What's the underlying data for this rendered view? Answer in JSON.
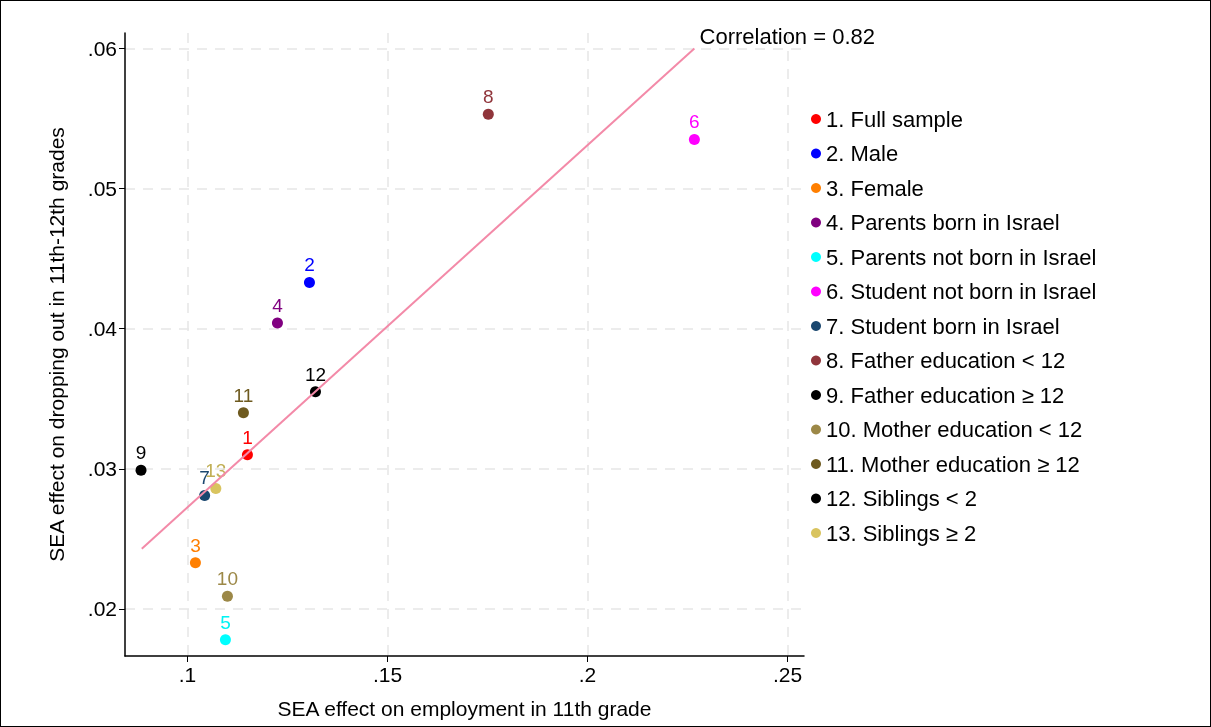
{
  "chart_data": {
    "type": "scatter",
    "xlabel": "SEA effect on employment in 11th grade",
    "ylabel": "SEA effect on dropping out in 11th-12th grades",
    "annotations": [
      "Correlation = 0.82",
      {
        "text": "1",
        "x": 0.115,
        "y": 0.031
      },
      {
        "text": "2",
        "x": 0.1305,
        "y": 0.0433
      },
      {
        "text": "3",
        "x": 0.102,
        "y": 0.0233
      },
      {
        "text": "4",
        "x": 0.1225,
        "y": 0.0404
      },
      {
        "text": "5",
        "x": 0.1095,
        "y": 0.0178
      },
      {
        "text": "6",
        "x": 0.2267,
        "y": 0.0535
      },
      {
        "text": "7",
        "x": 0.1043,
        "y": 0.0281
      },
      {
        "text": "8",
        "x": 0.1752,
        "y": 0.0553
      },
      {
        "text": "9",
        "x": 0.0884,
        "y": 0.0299
      },
      {
        "text": "10",
        "x": 0.11,
        "y": 0.0209
      },
      {
        "text": "11",
        "x": 0.114,
        "y": 0.034
      },
      {
        "text": "12",
        "x": 0.132,
        "y": 0.0355
      },
      {
        "text": "13",
        "x": 0.1071,
        "y": 0.0286
      }
    ],
    "xlim": [
      0.0844,
      0.2541
    ],
    "ylim": [
      0.01664,
      0.0611
    ],
    "xticks": [
      {
        "value": 0.1,
        "label": ".1"
      },
      {
        "value": 0.15,
        "label": ".15"
      },
      {
        "value": 0.2,
        "label": ".2"
      },
      {
        "value": 0.25,
        "label": ".25"
      }
    ],
    "yticks": [
      {
        "value": 0.02,
        "label": ".02"
      },
      {
        "value": 0.03,
        "label": ".03"
      },
      {
        "value": 0.04,
        "label": ".04"
      },
      {
        "value": 0.05,
        "label": ".05"
      },
      {
        "value": 0.06,
        "label": ".06"
      }
    ],
    "grid": true,
    "legend": "right",
    "marker": "circle",
    "series": [
      {
        "name": "1. Full sample",
        "color": "#ff0000",
        "x": [
          0.115
        ],
        "values": [
          0.031
        ]
      },
      {
        "name": "2. Male",
        "color": "#0000ff",
        "x": [
          0.1305
        ],
        "values": [
          0.0433
        ]
      },
      {
        "name": "3. Female",
        "color": "#ff7f00",
        "x": [
          0.102
        ],
        "values": [
          0.0233
        ]
      },
      {
        "name": "4. Parents born in Israel",
        "color": "#800080",
        "x": [
          0.1225
        ],
        "values": [
          0.0404
        ]
      },
      {
        "name": "5. Parents not born in Israel",
        "color": "#00ffff",
        "x": [
          0.1095
        ],
        "values": [
          0.0178
        ]
      },
      {
        "name": "6. Student not born in Israel",
        "color": "#ff00ff",
        "x": [
          0.2267
        ],
        "values": [
          0.0535
        ]
      },
      {
        "name": "7. Student born in Israel",
        "color": "#1a476f",
        "x": [
          0.1043
        ],
        "values": [
          0.0281
        ]
      },
      {
        "name": "8. Father education < 12",
        "color": "#90353b",
        "x": [
          0.1752
        ],
        "values": [
          0.0553
        ]
      },
      {
        "name": "9. Father education ≥ 12",
        "color": "#000000",
        "x": [
          0.0884
        ],
        "values": [
          0.0299
        ]
      },
      {
        "name": "10. Mother education < 12",
        "color": "#9c8847",
        "x": [
          0.11
        ],
        "values": [
          0.0209
        ]
      },
      {
        "name": "11. Mother education ≥ 12",
        "color": "#6e5a1f",
        "x": [
          0.114
        ],
        "values": [
          0.034
        ]
      },
      {
        "name": "12. Siblings < 2",
        "color": "#000000",
        "x": [
          0.132
        ],
        "values": [
          0.0355
        ]
      },
      {
        "name": "13. Siblings ≥ 2",
        "color": "#d9c45f",
        "x": [
          0.1071
        ],
        "values": [
          0.0286
        ]
      },
      {
        "type": "line",
        "color": "#f38aa8",
        "line_style": "solid",
        "marker": "none",
        "x": [
          0.0886,
          0.2267
        ],
        "values": [
          0.0243,
          0.06
        ]
      }
    ]
  }
}
